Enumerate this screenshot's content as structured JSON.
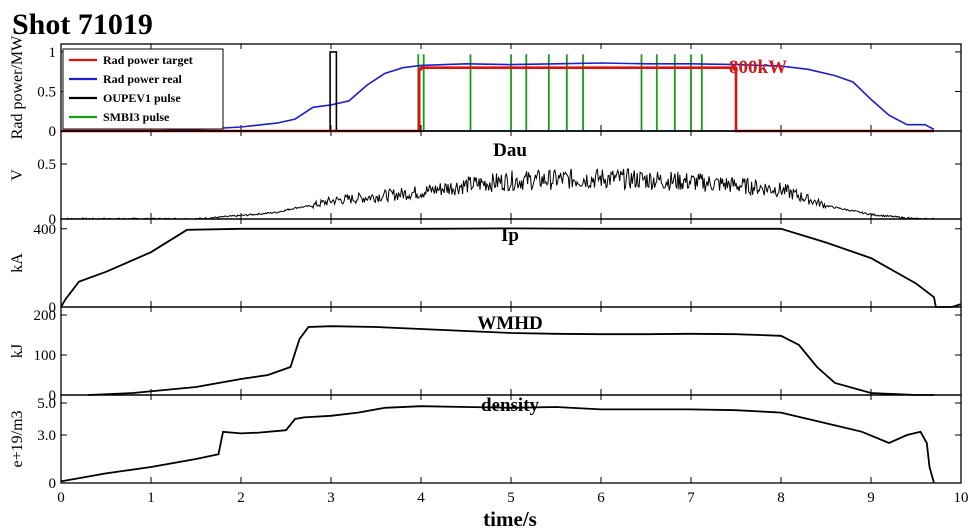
{
  "title": "Shot 71019",
  "xlabel": "time/s",
  "x_ticks": [
    "0",
    "1",
    "2",
    "3",
    "4",
    "5",
    "6",
    "7",
    "8",
    "9",
    "10"
  ],
  "annotation": "800kW",
  "legend": {
    "position": "top-left",
    "entries": [
      {
        "label": "Rad power target",
        "color": "#e01010"
      },
      {
        "label": "Rad power real",
        "color": "#1f1fc8"
      },
      {
        "label": "OUPEV1 pulse",
        "color": "#000000"
      },
      {
        "label": "SMBI3 pulse",
        "color": "#1a9a1a"
      }
    ]
  },
  "chart_data": [
    {
      "type": "line",
      "panel": "rad-power",
      "title": "",
      "ylabel": "Rad power/MW",
      "xlim": [
        0,
        10
      ],
      "ylim": [
        0,
        1.1
      ],
      "y_ticks": [
        "0",
        "0.5",
        "1"
      ],
      "grid": false,
      "series": [
        {
          "name": "Rad power real",
          "color": "#1f1fc8",
          "x": [
            0,
            0.5,
            1.0,
            1.5,
            2.0,
            2.4,
            2.6,
            2.8,
            3.0,
            3.2,
            3.4,
            3.6,
            3.8,
            4.0,
            4.5,
            5.0,
            5.5,
            6.0,
            6.5,
            7.0,
            7.5,
            8.0,
            8.3,
            8.6,
            8.8,
            9.0,
            9.2,
            9.4,
            9.6,
            9.7
          ],
          "y": [
            0.0,
            0.0,
            0.0,
            0.02,
            0.05,
            0.1,
            0.15,
            0.3,
            0.33,
            0.38,
            0.58,
            0.73,
            0.8,
            0.83,
            0.85,
            0.84,
            0.85,
            0.86,
            0.85,
            0.85,
            0.84,
            0.82,
            0.78,
            0.7,
            0.62,
            0.4,
            0.2,
            0.08,
            0.08,
            0.02
          ]
        },
        {
          "name": "Rad power target",
          "color": "#e01010",
          "x": [
            0,
            3.98,
            3.98,
            4.0,
            4.0,
            7.48,
            7.48,
            7.5,
            7.5,
            9.7
          ],
          "y": [
            0,
            0,
            0.78,
            0.78,
            0.8,
            0.8,
            0.78,
            0.78,
            0,
            0
          ]
        },
        {
          "name": "OUPEV1 pulse",
          "color": "#000000",
          "x": [
            0,
            2.99,
            2.99,
            3.06,
            3.06,
            9.7
          ],
          "y": [
            0,
            0,
            1.0,
            1.0,
            0,
            0
          ]
        }
      ],
      "pulses": {
        "name": "SMBI3 pulse",
        "color": "#1a9a1a",
        "height": 0.97,
        "x": [
          3.97,
          4.03,
          4.55,
          5.0,
          5.17,
          5.42,
          5.62,
          5.8,
          6.45,
          6.62,
          6.82,
          7.0,
          7.12
        ]
      }
    },
    {
      "type": "line",
      "panel": "dau",
      "title": "Dau",
      "ylabel": "V",
      "xlim": [
        0,
        10
      ],
      "ylim": [
        0,
        0.8
      ],
      "y_ticks": [
        "0",
        "0.5"
      ],
      "x": [
        0,
        1.5,
        2.0,
        2.4,
        2.6,
        2.8,
        3.0,
        3.5,
        4.0,
        4.5,
        5.0,
        5.5,
        6.0,
        6.5,
        7.0,
        7.5,
        8.0,
        8.5,
        9.0,
        9.5,
        9.7
      ],
      "y": [
        0,
        0.0,
        0.03,
        0.06,
        0.1,
        0.12,
        0.16,
        0.2,
        0.24,
        0.3,
        0.34,
        0.35,
        0.36,
        0.35,
        0.33,
        0.3,
        0.26,
        0.12,
        0.04,
        0.0,
        0.0
      ],
      "noise": 0.12
    },
    {
      "type": "line",
      "panel": "ip",
      "title": "Ip",
      "ylabel": "kA",
      "xlim": [
        0,
        10
      ],
      "ylim": [
        0,
        450
      ],
      "y_ticks": [
        "0",
        "400"
      ],
      "x": [
        0,
        0.05,
        0.2,
        0.5,
        1.0,
        1.4,
        2.0,
        3.0,
        4.0,
        5.0,
        6.0,
        7.0,
        8.0,
        8.5,
        9.0,
        9.5,
        9.7,
        9.72,
        9.9,
        10.0
      ],
      "y": [
        0,
        40,
        130,
        180,
        280,
        395,
        400,
        400,
        400,
        402,
        400,
        400,
        400,
        330,
        250,
        120,
        50,
        0,
        0,
        15
      ]
    },
    {
      "type": "line",
      "panel": "wmhd",
      "title": "WMHD",
      "ylabel": "kJ",
      "xlim": [
        0,
        10
      ],
      "ylim": [
        0,
        220
      ],
      "y_ticks": [
        "0",
        "100",
        "200"
      ],
      "x": [
        0.3,
        0.8,
        1.5,
        2.0,
        2.3,
        2.55,
        2.65,
        2.75,
        3.0,
        3.5,
        4.0,
        4.5,
        5.0,
        5.5,
        6.0,
        6.5,
        7.0,
        7.5,
        8.0,
        8.2,
        8.4,
        8.6,
        9.0,
        9.5,
        9.7
      ],
      "y": [
        0,
        5,
        20,
        40,
        50,
        70,
        140,
        170,
        172,
        170,
        165,
        160,
        155,
        153,
        152,
        152,
        153,
        152,
        148,
        125,
        70,
        30,
        5,
        0,
        0
      ]
    },
    {
      "type": "line",
      "panel": "density",
      "title": "density",
      "ylabel": "e+19/m3",
      "xlim": [
        0,
        10
      ],
      "ylim": [
        0,
        5.5
      ],
      "y_ticks": [
        "0",
        "3.0",
        "5.0"
      ],
      "x": [
        0,
        0.5,
        1.0,
        1.5,
        1.75,
        1.8,
        2.0,
        2.2,
        2.5,
        2.6,
        2.7,
        3.0,
        3.3,
        3.6,
        4.0,
        4.5,
        5.0,
        5.5,
        6.0,
        7.0,
        7.5,
        8.0,
        8.3,
        8.6,
        8.9,
        9.2,
        9.4,
        9.55,
        9.62,
        9.65,
        9.7
      ],
      "y": [
        0.1,
        0.6,
        1.0,
        1.5,
        1.8,
        3.2,
        3.1,
        3.15,
        3.3,
        4.0,
        4.1,
        4.2,
        4.4,
        4.7,
        4.8,
        4.75,
        4.7,
        4.75,
        4.6,
        4.6,
        4.55,
        4.4,
        4.0,
        3.6,
        3.2,
        2.5,
        3.0,
        3.2,
        2.5,
        1.0,
        0
      ]
    }
  ]
}
